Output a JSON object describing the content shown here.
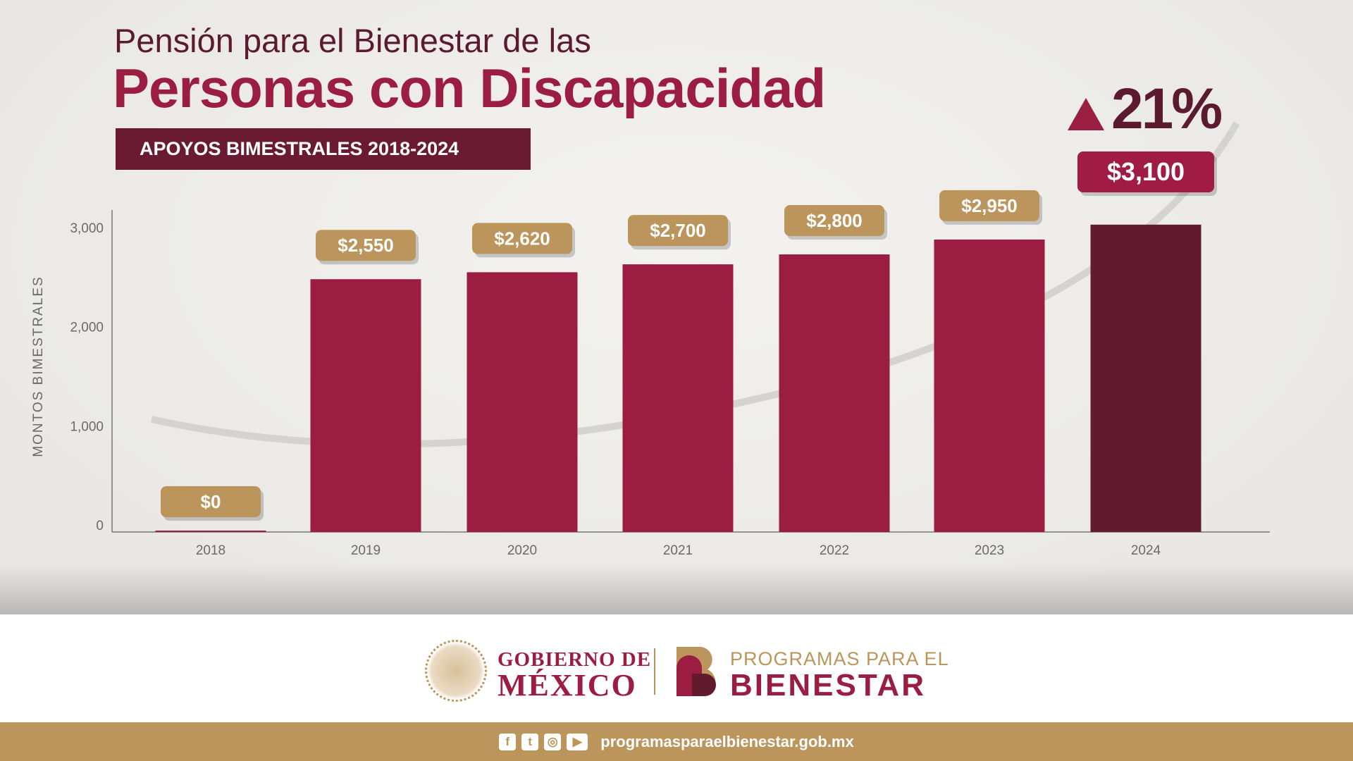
{
  "header": {
    "title_line1": "Pensión para el Bienestar de las",
    "title_line2": "Personas con Discapacidad",
    "badge": "APOYOS BIMESTRALES 2018-2024",
    "growth": "21%"
  },
  "chart_data": {
    "type": "bar",
    "title": "APOYOS BIMESTRALES 2018-2024",
    "ylabel": "MONTOS BIMESTRALES",
    "xlabel": "",
    "categories": [
      "2018",
      "2019",
      "2020",
      "2021",
      "2022",
      "2023",
      "2024"
    ],
    "values": [
      0,
      2550,
      2620,
      2700,
      2800,
      2950,
      3100
    ],
    "data_labels": [
      "$0",
      "$2,550",
      "$2,620",
      "$2,700",
      "$2,800",
      "$2,950",
      "$3,100"
    ],
    "yticks": [
      0,
      1000,
      2000,
      3000
    ],
    "ytick_labels": [
      "0",
      "1,000",
      "2,000",
      "3,000"
    ],
    "ylim": [
      0,
      3300
    ],
    "grid": false,
    "annotation": "▲21%",
    "colors": {
      "bar": "#9b1d42",
      "highlight_bar": "#611a2e",
      "label": "#bb955b",
      "highlight_label": "#a11c45"
    }
  },
  "footer": {
    "gob_line1": "GOBIERNO DE",
    "gob_line2": "MÉXICO",
    "prog_line1": "PROGRAMAS PARA EL",
    "prog_line2": "BIENESTAR",
    "url": "programasparaelbienestar.gob.mx",
    "social": [
      "facebook-icon",
      "twitter-icon",
      "instagram-icon",
      "youtube-icon"
    ]
  }
}
